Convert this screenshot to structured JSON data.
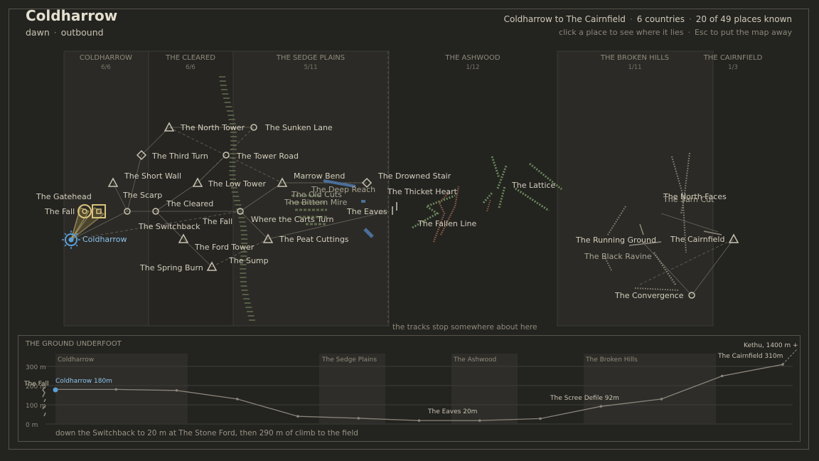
{
  "header": {
    "title": "Coldharrow",
    "time": "dawn",
    "direction": "outbound",
    "route": "Coldharrow to The Cairnfield",
    "countries": "6 countries",
    "known": "20 of 49 places known",
    "hint_click": "click a place to see where it lies",
    "hint_esc": "Esc to put the map away"
  },
  "map": {
    "tracks_note": "the tracks stop somewhere about here",
    "regions": [
      {
        "name": "COLDHARROW",
        "count": "6/6"
      },
      {
        "name": "THE CLEARED",
        "count": "6/6"
      },
      {
        "name": "THE SEDGE PLAINS",
        "count": "5/11"
      },
      {
        "name": "THE ASHWOOD",
        "count": "1/12"
      },
      {
        "name": "THE BROKEN HILLS",
        "count": "1/11"
      },
      {
        "name": "THE CAIRNFIELD",
        "count": "1/3"
      }
    ],
    "places": [
      {
        "name": "Coldharrow",
        "icon": "target-icon",
        "current": true
      },
      {
        "name": "The Fall",
        "icon": "circle-icon"
      },
      {
        "name": "The Gatehead",
        "icon": "none"
      },
      {
        "name": "The Scarp",
        "icon": "none"
      },
      {
        "name": "The Short Wall",
        "icon": "triangle-icon"
      },
      {
        "name": "The Third Turn",
        "icon": "diamond-icon"
      },
      {
        "name": "The North Tower",
        "icon": "triangle-icon"
      },
      {
        "name": "The Sunken Lane",
        "icon": "circle-icon"
      },
      {
        "name": "The Tower Road",
        "icon": "circle-icon"
      },
      {
        "name": "The Low Tower",
        "icon": "triangle-icon"
      },
      {
        "name": "The Cleared",
        "icon": "circle-icon"
      },
      {
        "name": "The Switchback",
        "icon": "triangle-icon"
      },
      {
        "name": "The Fall",
        "icon": "none"
      },
      {
        "name": "The Ford Tower",
        "icon": "none"
      },
      {
        "name": "The Spring Burn",
        "icon": "triangle-icon"
      },
      {
        "name": "The Sump",
        "icon": "none"
      },
      {
        "name": "Marrow Bend",
        "icon": "triangle-icon"
      },
      {
        "name": "The Deep Reach",
        "icon": "none"
      },
      {
        "name": "The Old Cuts",
        "icon": "none"
      },
      {
        "name": "The Bittern Mire",
        "icon": "none"
      },
      {
        "name": "Where the Carts Turn",
        "icon": "circle-icon"
      },
      {
        "name": "The Peat Cuttings",
        "icon": "triangle-icon"
      },
      {
        "name": "The Drowned Stair",
        "icon": "diamond-icon"
      },
      {
        "name": "The Thicket Heart",
        "icon": "none"
      },
      {
        "name": "The Eaves",
        "icon": "none"
      },
      {
        "name": "The Fallen Line",
        "icon": "none"
      },
      {
        "name": "The Lattice",
        "icon": "none"
      },
      {
        "name": "The North Faces",
        "icon": "none"
      },
      {
        "name": "The Sarn Cut",
        "icon": "none"
      },
      {
        "name": "The Running Ground",
        "icon": "none"
      },
      {
        "name": "The Black Ravine",
        "icon": "none"
      },
      {
        "name": "The Cairnfield",
        "icon": "triangle-icon"
      },
      {
        "name": "The Convergence",
        "icon": "circle-icon"
      }
    ]
  },
  "ground": {
    "title": "THE GROUND UNDERFOOT",
    "footer": "down the Switchback to 20 m at The Stone Ford, then 290 m of climb to the field",
    "axis_labels": [
      "300 m",
      "200 m",
      "100 m",
      "0 m"
    ],
    "bands": [
      "Coldharrow",
      "The Sedge Plains",
      "The Ashwood",
      "The Broken Hills"
    ],
    "points": [
      {
        "label": "Coldharrow  180m"
      },
      {
        "label": "The Fall"
      },
      {
        "label": "The Eaves  20m"
      },
      {
        "label": "The Scree Defile  92m"
      },
      {
        "label": "The Cairnfield  310m"
      },
      {
        "label": "Kethu, 1400 m +"
      }
    ],
    "profile_m": [
      180,
      180,
      175,
      130,
      40,
      30,
      18,
      18,
      28,
      92,
      130,
      250,
      310
    ]
  }
}
